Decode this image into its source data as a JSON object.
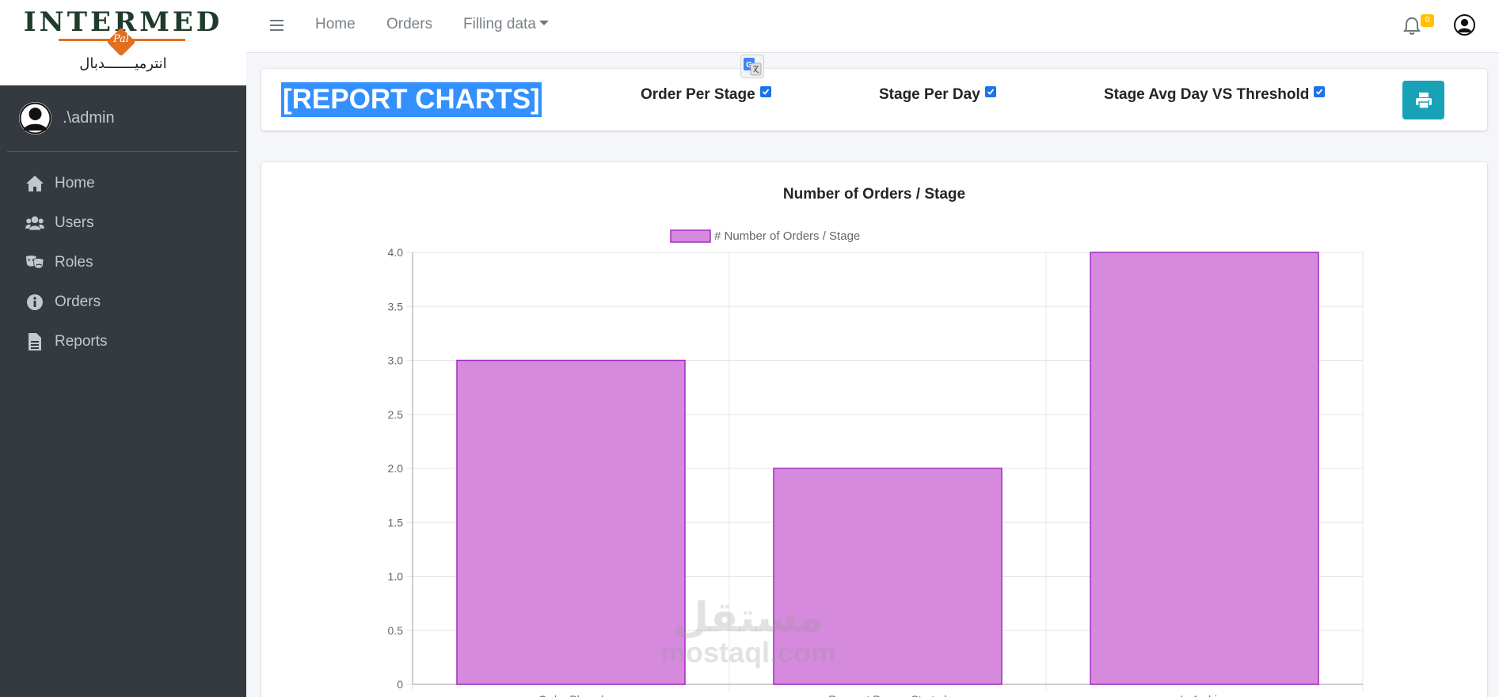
{
  "brand": {
    "logo_text": "INTERMED",
    "logo_badge": "Pal",
    "logo_arabic": "انترميـــــــدبال"
  },
  "sidebar": {
    "user_name": ".\\admin",
    "items": [
      {
        "label": "Home",
        "icon": "home-icon"
      },
      {
        "label": "Users",
        "icon": "users-icon"
      },
      {
        "label": "Roles",
        "icon": "theater-masks-icon"
      },
      {
        "label": "Orders",
        "icon": "info-circle-icon"
      },
      {
        "label": "Reports",
        "icon": "file-alt-icon"
      }
    ]
  },
  "topbar": {
    "links": [
      "Home",
      "Orders",
      "Filling data"
    ],
    "notification_count": "0"
  },
  "header": {
    "title": "[REPORT CHARTS]",
    "options": [
      {
        "label": "Order Per Stage",
        "checked": true
      },
      {
        "label": "Stage Per Day",
        "checked": true
      },
      {
        "label": "Stage Avg Day VS Threshold",
        "checked": true
      }
    ]
  },
  "watermark": {
    "arabic": "مستقل",
    "latin": "mostaql.com"
  },
  "chart_data": {
    "type": "bar",
    "title": "Number of Orders / Stage",
    "legend": "# Number of Orders / Stage",
    "legend_position": "top",
    "categories": [
      "Order Placed",
      "Request Papers Started",
      "In Archive"
    ],
    "values": [
      3,
      2,
      4
    ],
    "ylim": [
      0,
      4
    ],
    "yticks": [
      "0",
      "0.5",
      "1.0",
      "1.5",
      "2.0",
      "2.5",
      "3.0",
      "3.5",
      "4.0"
    ],
    "grid": true,
    "colors": {
      "fill": "#d68ade",
      "stroke": "#a42bc2"
    }
  }
}
